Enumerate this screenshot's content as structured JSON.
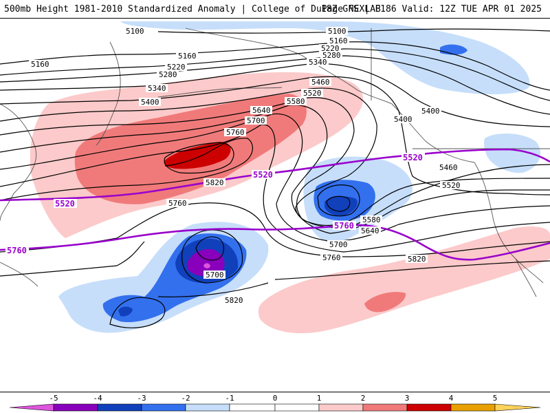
{
  "header": {
    "title": "500mb Height 1981-2010 Standardized Anomaly | College of DuPage NEXLAB",
    "run": "18Z GFS | F186 Valid: 12Z TUE APR 01 2025"
  },
  "colors": {
    "neg5": "#dd55dd",
    "neg4": "#8800bb",
    "neg3": "#1140bb",
    "neg2": "#3370ee",
    "neg1": "#c6defa",
    "zero": "#ffffff",
    "pos1": "#fccaca",
    "pos2": "#f07a7a",
    "pos3": "#cc0000",
    "pos4": "#e8a000",
    "pos5": "#ffd25a",
    "highlight_contour": "#9900cc",
    "contour": "#000000"
  },
  "colorbar": {
    "labels": [
      "-5",
      "-4",
      "-3",
      "-2",
      "-1",
      "0",
      "1",
      "2",
      "3",
      "4",
      "5"
    ]
  },
  "contour_labels": {
    "h5100a": "5100",
    "h5100b": "5100",
    "h5160a": "5160",
    "h5160b": "5160",
    "h5160c": "5160",
    "h5220a": "5220",
    "h5220b": "5220",
    "h5280a": "5280",
    "h5280b": "5280",
    "h5340a": "5340",
    "h5340b": "5340",
    "h5400a": "5400",
    "h5400b": "5400",
    "h5400c": "5400",
    "h5460a": "5460",
    "h5460b": "5460",
    "h5520a": "5520",
    "h5520b": "5520",
    "h5580a": "5580",
    "h5580b": "5580",
    "h5640a": "5640",
    "h5640b": "5640",
    "h5700a": "5700",
    "h5700b": "5700",
    "h5700c": "5700",
    "h5760a": "5760",
    "h5760b": "5760",
    "h5760c": "5760",
    "h5820a": "5820",
    "h5820b": "5820",
    "h5820c": "5820"
  },
  "highlight_labels": {
    "p5520a": "5520",
    "p5520b": "5520",
    "p5520c": "5520",
    "p5760a": "5760",
    "p5760b": "5760"
  }
}
